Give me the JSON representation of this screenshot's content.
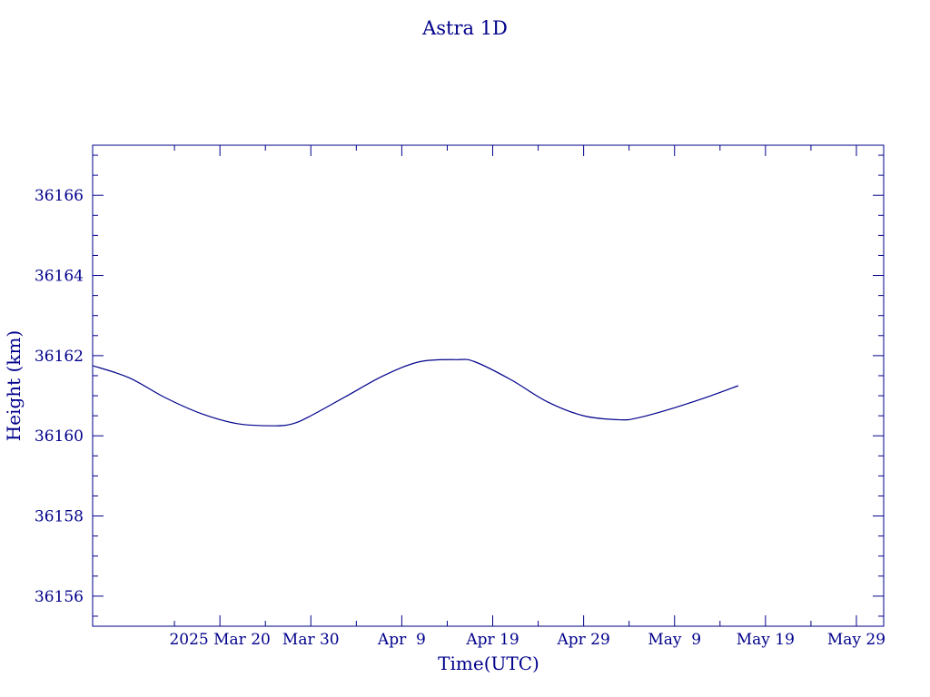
{
  "chart_data": {
    "type": "line",
    "title": "Astra 1D",
    "xlabel": "Time(UTC)",
    "ylabel": "Height (km)",
    "x_unit": "date (2025)",
    "xlim": [
      "2025-03-06",
      "2025-06-01"
    ],
    "ylim": [
      36155.25,
      36167.25
    ],
    "x_ticks": [
      {
        "date": "2025-03-20",
        "label": "2025 Mar 20"
      },
      {
        "date": "2025-03-30",
        "label": "Mar 30"
      },
      {
        "date": "2025-04-09",
        "label": "Apr  9"
      },
      {
        "date": "2025-04-19",
        "label": "Apr 19"
      },
      {
        "date": "2025-04-29",
        "label": "Apr 29"
      },
      {
        "date": "2025-05-09",
        "label": "May  9"
      },
      {
        "date": "2025-05-19",
        "label": "May 19"
      },
      {
        "date": "2025-05-29",
        "label": "May 29"
      }
    ],
    "y_ticks": [
      36156,
      36158,
      36160,
      36162,
      36164,
      36166
    ],
    "grid": false,
    "color": "#00008b",
    "series": [
      {
        "x": [
          "2025-03-06",
          "2025-03-10",
          "2025-03-14",
          "2025-03-18",
          "2025-03-22",
          "2025-03-26",
          "2025-03-28",
          "2025-03-30",
          "2025-04-03",
          "2025-04-07",
          "2025-04-11",
          "2025-04-15",
          "2025-04-17",
          "2025-04-21",
          "2025-04-25",
          "2025-04-29",
          "2025-05-03",
          "2025-05-05",
          "2025-05-09",
          "2025-05-13",
          "2025-05-16"
        ],
        "y": [
          36161.75,
          36161.45,
          36160.95,
          36160.55,
          36160.3,
          36160.25,
          36160.3,
          36160.5,
          36161.0,
          36161.5,
          36161.85,
          36161.9,
          36161.85,
          36161.4,
          36160.85,
          36160.5,
          36160.4,
          36160.45,
          36160.7,
          36161.0,
          36161.25
        ]
      }
    ]
  }
}
